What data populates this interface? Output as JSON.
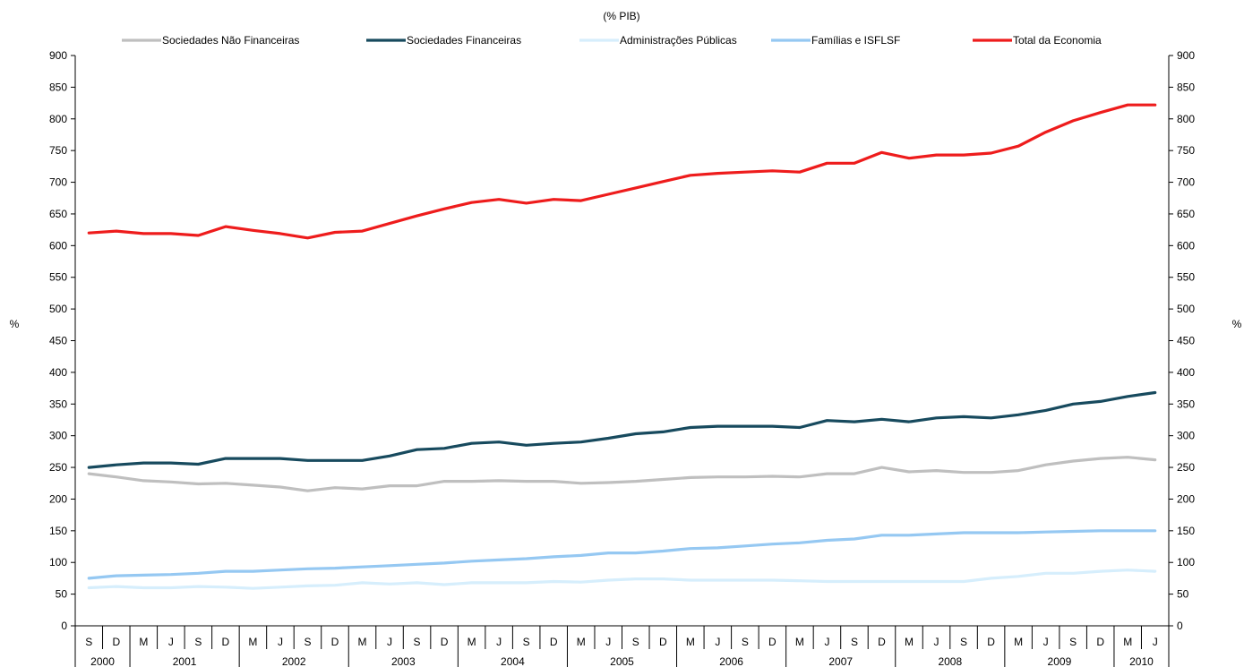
{
  "chart_data": {
    "type": "line",
    "title": "",
    "subtitle": "(% PIB)",
    "ylabel_left": "%",
    "ylabel_right": "%",
    "ylim": [
      0,
      900
    ],
    "yticks": [
      0,
      50,
      100,
      150,
      200,
      250,
      300,
      350,
      400,
      450,
      500,
      550,
      600,
      650,
      700,
      750,
      800,
      850,
      900
    ],
    "legend_position": "top",
    "grid": false,
    "x_quarters": [
      "S",
      "D",
      "M",
      "J",
      "S",
      "D",
      "M",
      "J",
      "S",
      "D",
      "M",
      "J",
      "S",
      "D",
      "M",
      "J",
      "S",
      "D",
      "M",
      "J",
      "S",
      "D",
      "M",
      "J",
      "S",
      "D",
      "M",
      "J",
      "S",
      "D",
      "M",
      "J",
      "S",
      "D",
      "M",
      "J",
      "S",
      "D",
      "M",
      "J"
    ],
    "years": [
      {
        "label": "2000",
        "count": 2
      },
      {
        "label": "2001",
        "count": 4
      },
      {
        "label": "2002",
        "count": 4
      },
      {
        "label": "2003",
        "count": 4
      },
      {
        "label": "2004",
        "count": 4
      },
      {
        "label": "2005",
        "count": 4
      },
      {
        "label": "2006",
        "count": 4
      },
      {
        "label": "2007",
        "count": 4
      },
      {
        "label": "2008",
        "count": 4
      },
      {
        "label": "2009",
        "count": 4
      },
      {
        "label": "2010",
        "count": 2
      }
    ],
    "series": [
      {
        "name": "Sociedades Não Financeiras",
        "color": "#bfbfbf",
        "values": [
          240,
          235,
          229,
          227,
          224,
          225,
          222,
          219,
          213,
          218,
          216,
          221,
          221,
          228,
          228,
          229,
          228,
          228,
          225,
          226,
          228,
          231,
          234,
          235,
          235,
          236,
          235,
          240,
          240,
          250,
          243,
          245,
          242,
          242,
          245,
          254,
          260,
          264,
          266,
          262
        ]
      },
      {
        "name": "Sociedades Financeiras",
        "color": "#174a5e",
        "values": [
          250,
          254,
          257,
          257,
          255,
          264,
          264,
          264,
          261,
          261,
          261,
          268,
          278,
          280,
          288,
          290,
          285,
          288,
          290,
          296,
          303,
          306,
          313,
          315,
          315,
          315,
          313,
          324,
          322,
          326,
          322,
          328,
          330,
          328,
          333,
          340,
          350,
          354,
          362,
          368
        ]
      },
      {
        "name": "Administrações Públicas",
        "color": "#d6eefc",
        "values": [
          60,
          62,
          60,
          60,
          62,
          61,
          59,
          61,
          63,
          64,
          68,
          66,
          68,
          65,
          68,
          68,
          68,
          70,
          69,
          72,
          74,
          74,
          72,
          72,
          72,
          72,
          71,
          70,
          70,
          70,
          70,
          70,
          70,
          75,
          78,
          83,
          83,
          86,
          88,
          86
        ]
      },
      {
        "name": "Famílias e ISFLSF",
        "color": "#95c8f2",
        "values": [
          75,
          79,
          80,
          81,
          83,
          86,
          86,
          88,
          90,
          91,
          93,
          95,
          97,
          99,
          102,
          104,
          106,
          109,
          111,
          115,
          115,
          118,
          122,
          123,
          126,
          129,
          131,
          135,
          137,
          143,
          143,
          145,
          147,
          147,
          147,
          148,
          149,
          150,
          150,
          150
        ]
      },
      {
        "name": "Total da Economia",
        "color": "#ee1c1c",
        "values": [
          620,
          623,
          619,
          619,
          616,
          630,
          624,
          619,
          612,
          621,
          623,
          635,
          647,
          658,
          668,
          673,
          667,
          673,
          671,
          681,
          691,
          701,
          711,
          714,
          716,
          718,
          716,
          730,
          730,
          747,
          738,
          743,
          743,
          746,
          757,
          779,
          797,
          810,
          822,
          822
        ]
      }
    ]
  }
}
